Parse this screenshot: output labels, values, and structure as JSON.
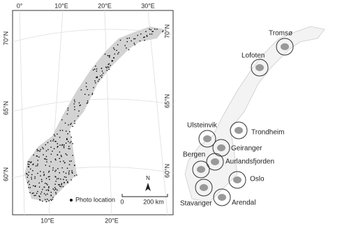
{
  "left_map": {
    "graticule_labels": {
      "top": [
        "0°",
        "10°E",
        "20°E",
        "30°E"
      ],
      "bottom": [
        "10°E",
        "20°E"
      ],
      "left": [
        "70°N",
        "65°N",
        "60°N"
      ],
      "right": [
        "70°N",
        "65°N",
        "60°N"
      ]
    },
    "legend": "Photo location",
    "north_arrow": "N",
    "scale_bar": [
      "0",
      "200 km"
    ]
  },
  "right_map": {
    "sites": [
      {
        "label": "Tromsø"
      },
      {
        "label": "Lofoten"
      },
      {
        "label": "Trondheim"
      },
      {
        "label": "Ulsteinvik"
      },
      {
        "label": "Geiranger"
      },
      {
        "label": "Aurlandsfjorden"
      },
      {
        "label": "Bergen"
      },
      {
        "label": "Oslo"
      },
      {
        "label": "Stavanger"
      },
      {
        "label": "Arendal"
      }
    ]
  }
}
